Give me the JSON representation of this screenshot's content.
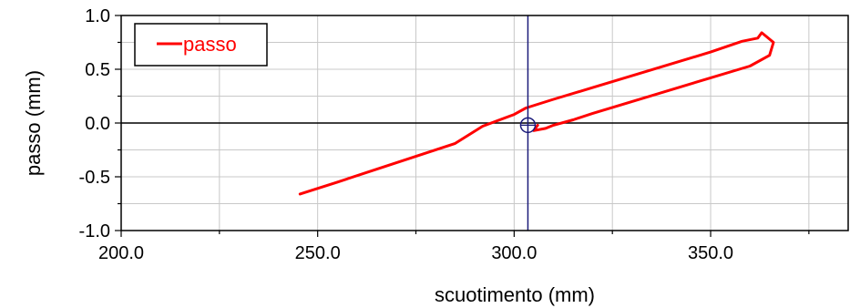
{
  "chart_data": {
    "type": "line",
    "xlabel": "scuotimento (mm)",
    "ylabel": "passo (mm)",
    "xlim": [
      200,
      385
    ],
    "ylim": [
      -1.0,
      1.0
    ],
    "x_ticks": [
      200,
      250,
      300,
      350
    ],
    "x_tick_labels": [
      "200.0",
      "250.0",
      "300.0",
      "350.0"
    ],
    "x_minor_step": 25,
    "y_ticks": [
      -1.0,
      -0.5,
      0.0,
      0.5,
      1.0
    ],
    "y_tick_labels": [
      "-1.0",
      "-0.5",
      "0.0",
      "0.5",
      "1.0"
    ],
    "y_minor_step": 0.25,
    "grid": true,
    "legend_position": "top-left",
    "cursor": {
      "x": 303.5,
      "y": -0.02
    },
    "series": [
      {
        "name": "passo",
        "color": "#ff0000",
        "x": [
          245.5,
          255,
          265,
          275,
          285,
          292,
          300,
          303,
          310,
          320,
          330,
          340,
          350,
          358,
          362,
          363,
          366,
          365,
          360,
          350,
          340,
          330,
          320,
          315,
          310,
          308,
          305,
          306
        ],
        "y": [
          -0.66,
          -0.55,
          -0.43,
          -0.31,
          -0.19,
          -0.03,
          0.08,
          0.14,
          0.22,
          0.33,
          0.44,
          0.55,
          0.66,
          0.76,
          0.79,
          0.84,
          0.75,
          0.63,
          0.53,
          0.42,
          0.31,
          0.2,
          0.09,
          0.03,
          -0.02,
          -0.05,
          -0.07,
          -0.02
        ]
      }
    ]
  }
}
